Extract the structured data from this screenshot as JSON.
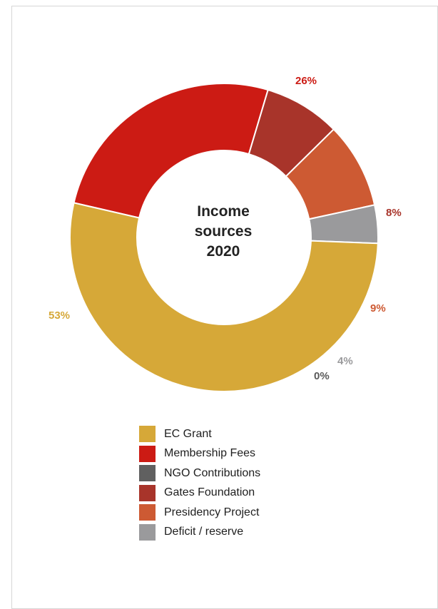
{
  "chart_data": {
    "type": "pie",
    "title": "Income sources 2020",
    "title_lines": [
      "Income",
      "sources",
      "2020"
    ],
    "series": [
      {
        "name": "EC Grant",
        "value": 53,
        "label": "53%",
        "color": "#d6a838"
      },
      {
        "name": "Membership Fees",
        "value": 26,
        "label": "26%",
        "color": "#cc1b14"
      },
      {
        "name": "NGO Contributions",
        "value": 0,
        "label": "0%",
        "color": "#606060"
      },
      {
        "name": "Gates Foundation",
        "value": 8,
        "label": "8%",
        "color": "#a8342a"
      },
      {
        "name": "Presidency Project",
        "value": 9,
        "label": "9%",
        "color": "#cd5a33"
      },
      {
        "name": "Deficit / reserve",
        "value": 4,
        "label": "4%",
        "color": "#9a9a9c"
      }
    ],
    "render_order": [
      1,
      3,
      4,
      2,
      5,
      0
    ],
    "donut": true,
    "legend_position": "bottom"
  }
}
